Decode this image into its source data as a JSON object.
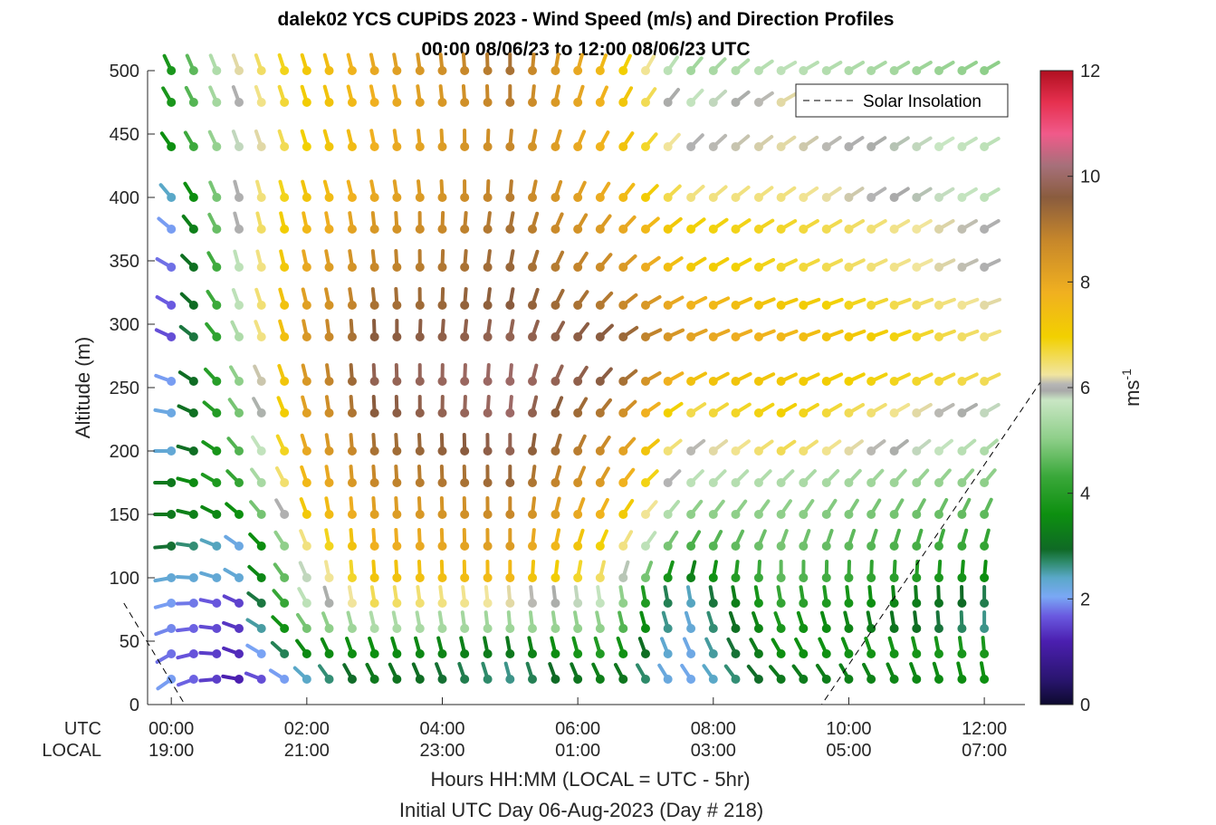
{
  "chart_data": {
    "type": "wind-barb-profile",
    "title": [
      "dalek02 YCS CUPiDS 2023 - Wind Speed (m/s) and Direction Profiles",
      "00:00 08/06/23 to 12:00 08/06/23  UTC"
    ],
    "ylabel": "Altitude (m)",
    "ylim": [
      0,
      500
    ],
    "yticks": [
      0,
      50,
      100,
      150,
      200,
      250,
      300,
      350,
      400,
      450,
      500
    ],
    "xlim_hours": [
      -0.35,
      12.6
    ],
    "xticks": [
      {
        "hour": 0,
        "utc": "00:00",
        "local": "19:00"
      },
      {
        "hour": 2,
        "utc": "02:00",
        "local": "21:00"
      },
      {
        "hour": 4,
        "utc": "04:00",
        "local": "23:00"
      },
      {
        "hour": 6,
        "utc": "06:00",
        "local": "01:00"
      },
      {
        "hour": 8,
        "utc": "08:00",
        "local": "03:00"
      },
      {
        "hour": 10,
        "utc": "10:00",
        "local": "05:00"
      },
      {
        "hour": 12,
        "utc": "12:00",
        "local": "07:00"
      }
    ],
    "row_labels": {
      "utc": "UTC",
      "local": "LOCAL"
    },
    "xlabel": "Hours HH:MM  (LOCAL = UTC - 5hr)",
    "xlabel2": "Initial UTC Day 06-Aug-2023 (Day # 218)",
    "colorbar": {
      "label": "ms",
      "label_exponent": "-1",
      "ticks": [
        0,
        2,
        4,
        6,
        8,
        10,
        12
      ],
      "range": [
        0,
        12
      ]
    },
    "legend": {
      "entry": "Solar Insolation",
      "style": "dashed",
      "position": "top-right"
    },
    "solar_insolation": {
      "hours": [
        -0.7,
        0.2,
        9.6,
        12.9
      ],
      "altitudes": [
        80,
        0,
        0,
        260
      ]
    },
    "profile_altitudes": [
      20,
      40,
      60,
      80,
      100,
      125,
      150,
      175,
      200,
      230,
      255,
      290,
      315,
      345,
      375,
      400,
      440,
      475,
      500
    ],
    "profile_times": [
      0,
      0.33,
      0.67,
      1,
      1.33,
      1.67,
      2,
      2.33,
      2.67,
      3,
      3.33,
      3.67,
      4,
      4.33,
      4.67,
      5,
      5.33,
      5.67,
      6,
      6.33,
      6.67,
      7,
      7.33,
      7.67,
      8,
      8.33,
      8.67,
      9,
      9.33,
      9.67,
      10,
      10.33,
      10.67,
      11,
      11.33,
      11.67,
      12
    ],
    "wind_model": {
      "description": "speed (m/s) and direction-from (deg) per profile; estimated from colors",
      "speed_keys": [
        {
          "t": 0,
          "speeds": [
            2.0,
            1.8,
            1.9,
            2.0,
            2.3,
            2.9,
            3.2,
            3.2,
            2.3,
            2.2,
            2.0,
            1.6,
            1.7,
            1.8,
            2.0,
            2.4,
            3.6,
            3.8,
            3.8
          ]
        },
        {
          "t": 1,
          "speeds": [
            1.2,
            1.3,
            1.4,
            1.5,
            2.3,
            2.2,
            3.6,
            4.2,
            4.5,
            4.8,
            5.0,
            5.4,
            5.6,
            5.6,
            6.0,
            6.0,
            5.8,
            6.0,
            6.2
          ]
        },
        {
          "t": 2,
          "speeds": [
            2.4,
            3.5,
            4.8,
            5.6,
            5.8,
            6.4,
            7.2,
            7.6,
            8.0,
            8.2,
            8.4,
            8.4,
            8.2,
            8.0,
            7.6,
            7.3,
            7.0,
            7.1,
            7.2
          ]
        },
        {
          "t": 3,
          "speeds": [
            3.2,
            3.6,
            5.4,
            6.6,
            7.3,
            7.8,
            8.2,
            8.8,
            9.2,
            9.6,
            9.8,
            9.6,
            9.2,
            8.8,
            8.4,
            8.0,
            7.8,
            7.8,
            8.0
          ]
        },
        {
          "t": 5,
          "speeds": [
            2.6,
            3.2,
            5.2,
            6.2,
            7.6,
            8.3,
            8.8,
            9.4,
            9.8,
            10.0,
            10.0,
            9.8,
            9.6,
            9.4,
            9.2,
            9.0,
            8.8,
            9.0,
            9.2
          ]
        },
        {
          "t": 6.5,
          "speeds": [
            3.4,
            4.0,
            5.0,
            5.6,
            6.4,
            6.8,
            7.6,
            8.2,
            8.6,
            9.0,
            9.6,
            9.6,
            9.0,
            8.6,
            8.2,
            7.8,
            7.6,
            7.6,
            7.4
          ]
        },
        {
          "t": 7.5,
          "speeds": [
            2.0,
            2.0,
            2.1,
            2.2,
            3.2,
            4.4,
            5.0,
            5.6,
            6.0,
            6.6,
            7.4,
            8.2,
            7.8,
            7.2,
            7.0,
            6.4,
            6.0,
            5.6,
            5.2
          ]
        },
        {
          "t": 9,
          "speeds": [
            3.2,
            3.6,
            3.8,
            4.2,
            4.6,
            4.8,
            5.0,
            5.4,
            6.6,
            7.0,
            7.2,
            7.6,
            7.2,
            6.8,
            6.8,
            6.4,
            6.2,
            6.2,
            5.6
          ]
        },
        {
          "t": 12,
          "speeds": [
            3.6,
            3.8,
            2.6,
            2.8,
            3.6,
            4.2,
            4.6,
            5.0,
            5.4,
            5.8,
            6.6,
            6.4,
            6.2,
            6.0,
            6.0,
            5.6,
            5.6,
            5.2,
            5.0
          ]
        }
      ],
      "direction_keys": [
        {
          "t": 0,
          "dirs": [
            235,
            240,
            250,
            255,
            260,
            265,
            270,
            270,
            270,
            280,
            290,
            295,
            300,
            300,
            310,
            320,
            325,
            330,
            335
          ]
        },
        {
          "t": 1,
          "dirs": [
            280,
            290,
            290,
            295,
            300,
            305,
            310,
            315,
            320,
            325,
            330,
            335,
            340,
            345,
            345,
            345,
            340,
            340,
            340
          ]
        },
        {
          "t": 2.5,
          "dirs": [
            330,
            340,
            345,
            350,
            355,
            355,
            355,
            355,
            355,
            355,
            355,
            355,
            350,
            350,
            350,
            345,
            345,
            345,
            345
          ]
        },
        {
          "t": 5,
          "dirs": [
            345,
            350,
            355,
            355,
            0,
            0,
            0,
            0,
            0,
            5,
            5,
            10,
            10,
            10,
            10,
            5,
            5,
            0,
            0
          ]
        },
        {
          "t": 7,
          "dirs": [
            330,
            340,
            345,
            350,
            20,
            35,
            40,
            45,
            50,
            55,
            60,
            65,
            60,
            55,
            50,
            45,
            40,
            35,
            30
          ]
        },
        {
          "t": 9,
          "dirs": [
            320,
            330,
            340,
            350,
            0,
            20,
            35,
            45,
            55,
            60,
            65,
            70,
            70,
            65,
            60,
            55,
            55,
            60,
            60
          ]
        },
        {
          "t": 12,
          "dirs": [
            350,
            355,
            0,
            0,
            5,
            15,
            25,
            40,
            50,
            60,
            65,
            70,
            70,
            65,
            60,
            60,
            60,
            60,
            60
          ]
        }
      ]
    }
  }
}
